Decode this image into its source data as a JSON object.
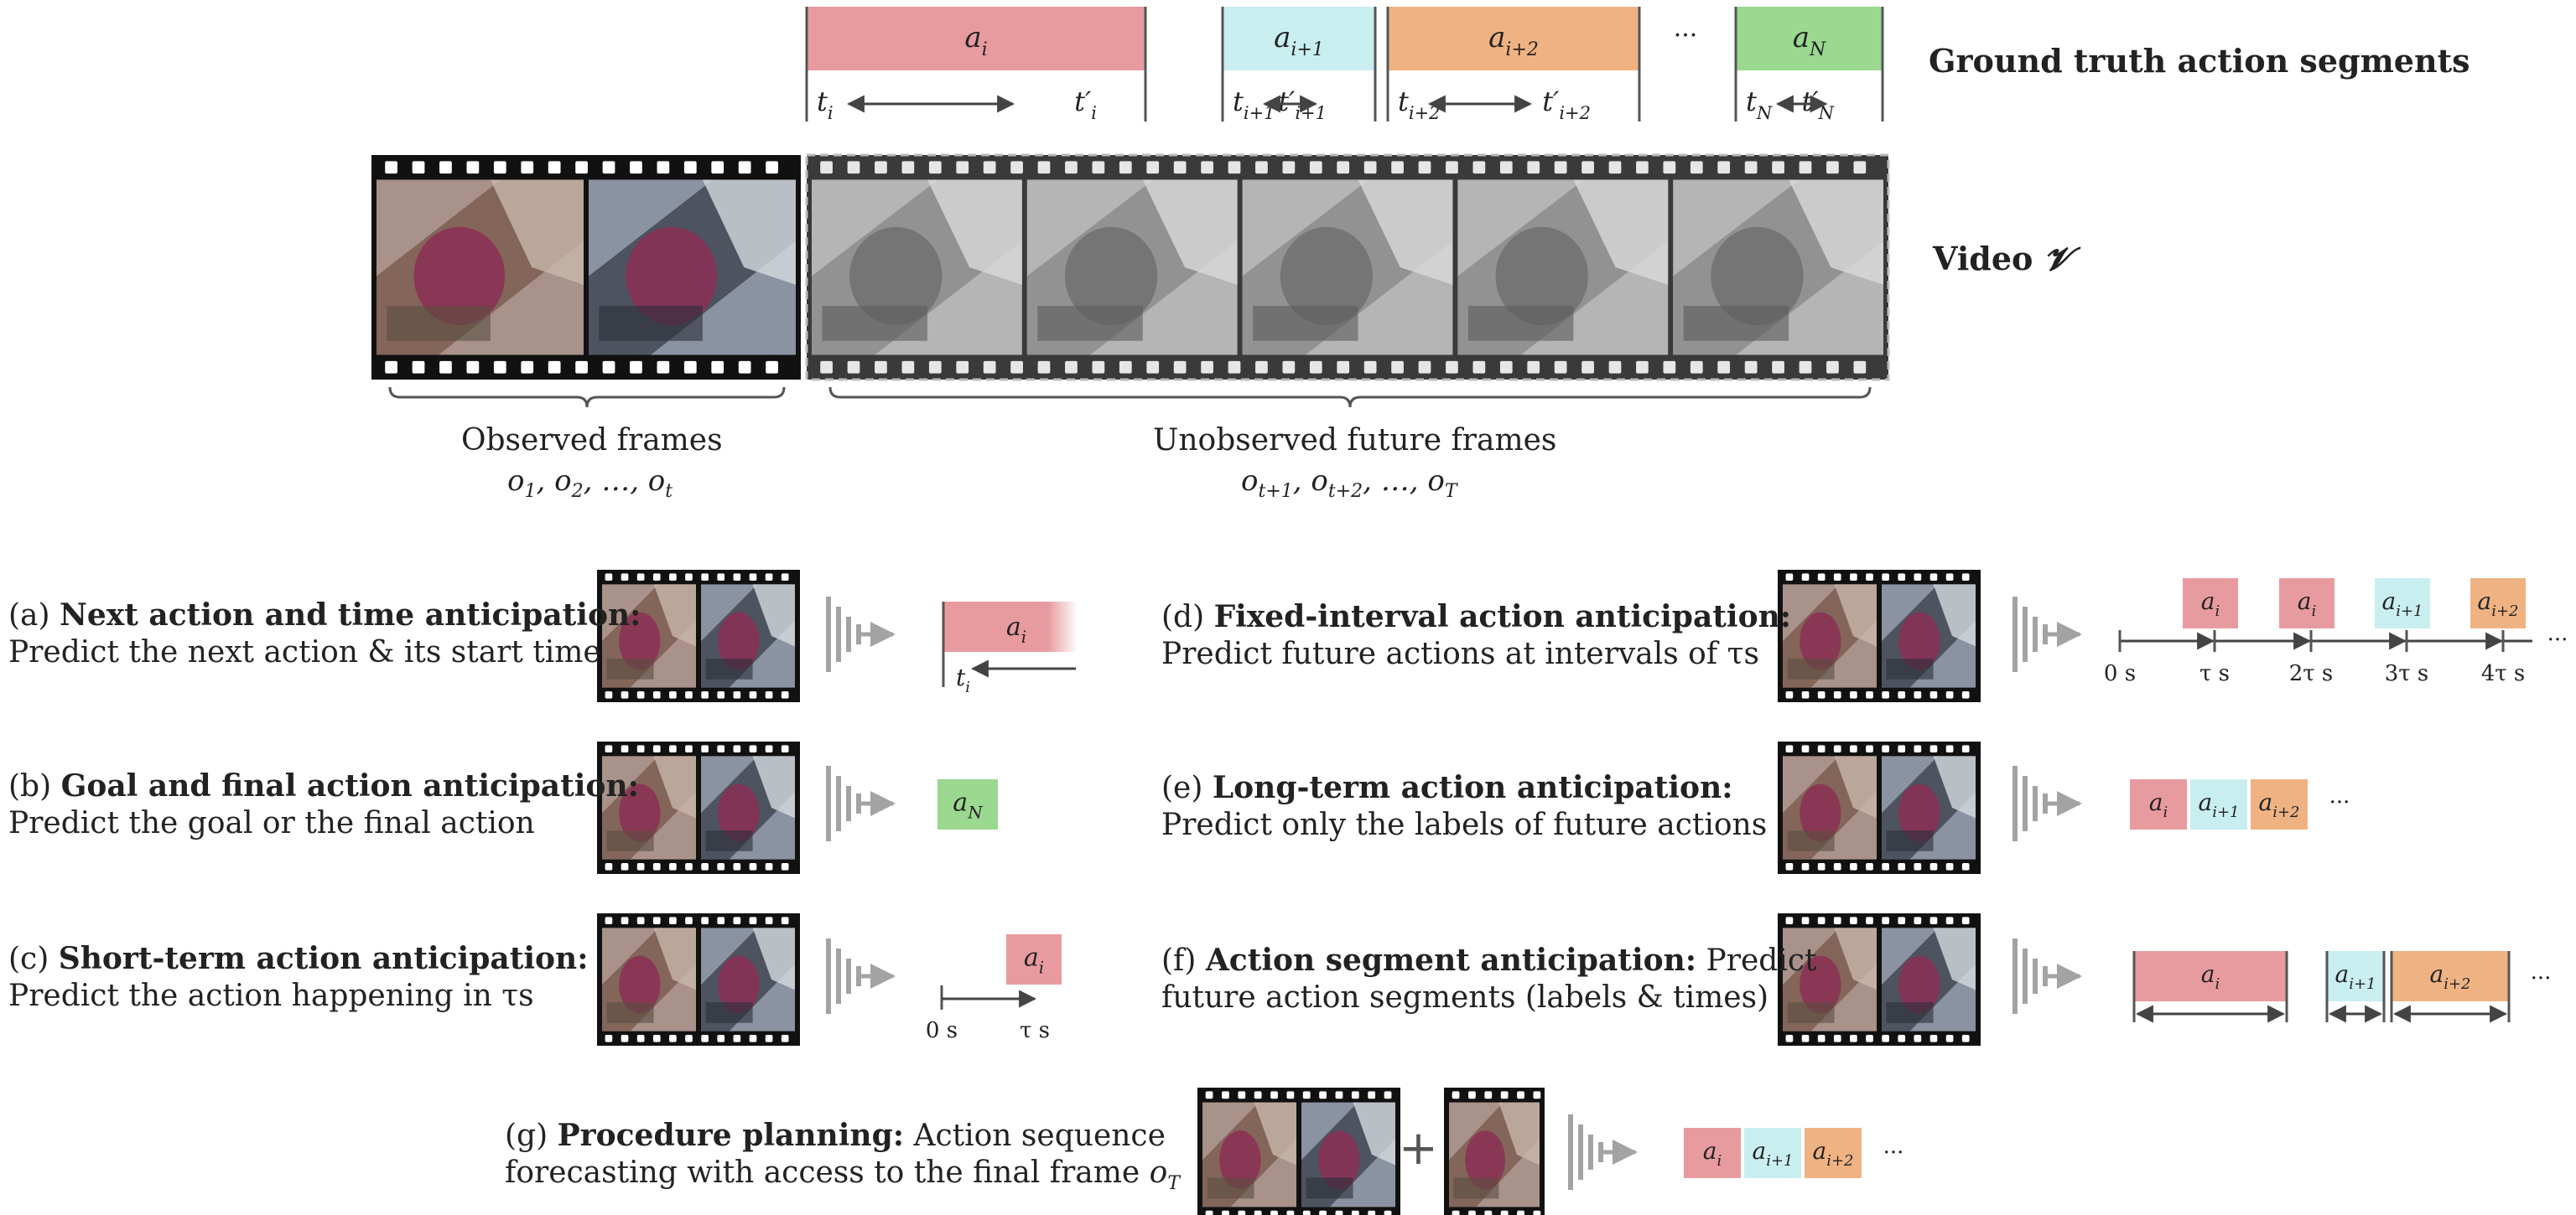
{
  "colors": {
    "a_i": "#e89b9f",
    "a_i1": "#c9eef0",
    "a_i2": "#efb383",
    "a_N": "#9ad98f",
    "model": "#a3a3a3",
    "arrow": "#444444"
  },
  "ground_truth": {
    "title": "Ground truth action segments",
    "segments": [
      {
        "label": "a",
        "sub": "i",
        "start_t": "t",
        "start_sub": "i",
        "end_t": "t′",
        "end_sub": "i",
        "color": "a_i"
      },
      {
        "label": "a",
        "sub": "i+1",
        "start_t": "t",
        "start_sub": "i+1",
        "end_t": "t′",
        "end_sub": "i+1",
        "color": "a_i1"
      },
      {
        "label": "a",
        "sub": "i+2",
        "start_t": "t",
        "start_sub": "i+2",
        "end_t": "t′",
        "end_sub": "i+2",
        "color": "a_i2"
      },
      {
        "label": "a",
        "sub": "N",
        "start_t": "t",
        "start_sub": "N",
        "end_t": "t′",
        "end_sub": "N",
        "color": "a_N"
      }
    ],
    "ellipsis": "···"
  },
  "video": {
    "label": "Video",
    "symbol": "𝓥",
    "observed_label": "Observed frames",
    "observed_math": "o₁, o₂, …, o_t",
    "unobserved_label": "Unobserved future frames",
    "unobserved_math": "o_t+1, o_t+2, …, o_T"
  },
  "tasks": [
    {
      "id": "a",
      "prefix": "(a) ",
      "title": "Next action and time anticipation:",
      "line1_rest": "",
      "line2": "Predict the next action & its start time"
    },
    {
      "id": "b",
      "prefix": "(b) ",
      "title": "Goal and final action anticipation:",
      "line1_rest": "",
      "line2": "Predict the goal or the final action"
    },
    {
      "id": "c",
      "prefix": "(c) ",
      "title": "Short-term action anticipation:",
      "line1_rest": "",
      "line2": "Predict the action happening in τs"
    },
    {
      "id": "d",
      "prefix": "(d) ",
      "title": "Fixed-interval action anticipation:",
      "line1_rest": "",
      "line2": "Predict future actions at intervals of τs"
    },
    {
      "id": "e",
      "prefix": "(e) ",
      "title": "Long-term action anticipation:",
      "line1_rest": "",
      "line2": "Predict only the labels of future actions"
    },
    {
      "id": "f",
      "prefix": "(f) ",
      "title": "Action segment anticipation:",
      "line1_rest": " Predict",
      "line2": "future action segments (labels & times)"
    },
    {
      "id": "g",
      "prefix": "(g) ",
      "title": "Procedure planning:",
      "line1_rest": " Action sequence",
      "line2": "forecasting with access to the final frame o_T"
    }
  ],
  "timeline_d": [
    "0 s",
    "τ s",
    "2τ s",
    "3τ s",
    "4τ s"
  ],
  "timeline_c": [
    "0 s",
    "τ s"
  ],
  "plus": "+",
  "ellipsis": "···"
}
